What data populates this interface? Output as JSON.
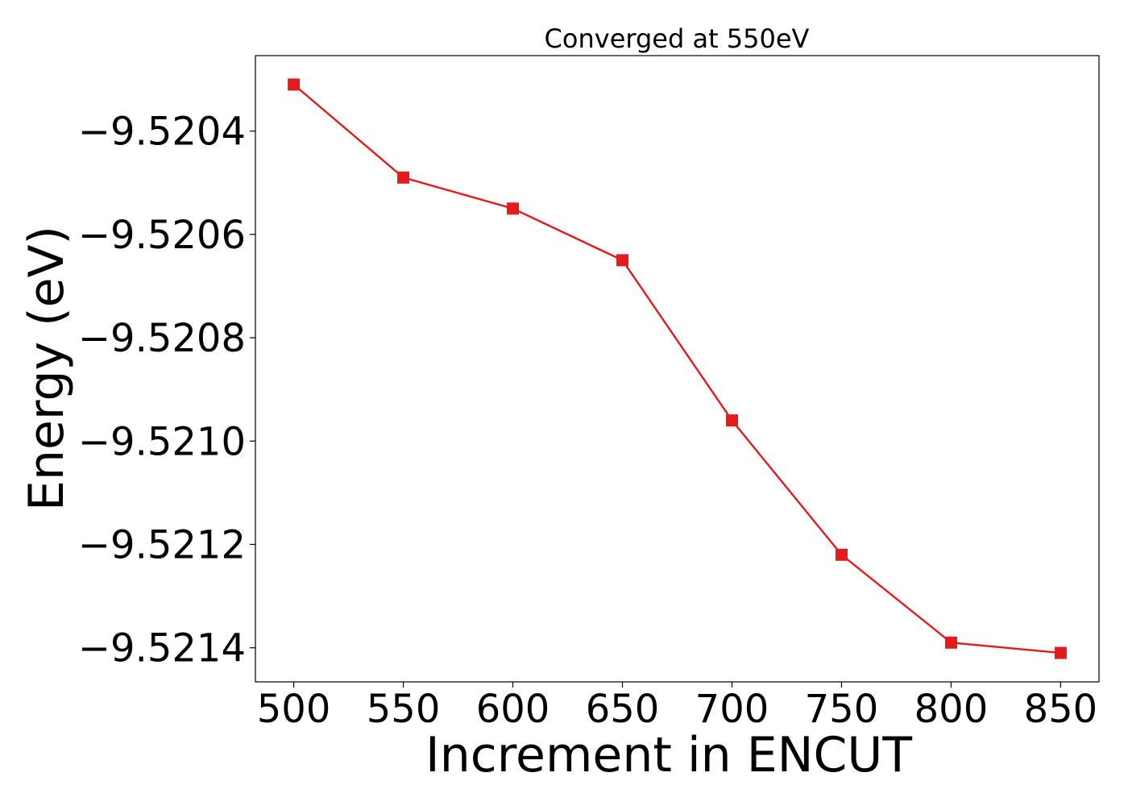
{
  "chart_data": {
    "type": "line",
    "title": "Converged at 550eV",
    "xlabel": "Increment in ENCUT",
    "ylabel": "Energy (eV)",
    "x": [
      500,
      550,
      600,
      650,
      700,
      750,
      800,
      850
    ],
    "series": [
      {
        "values": [
          -9.52031,
          -9.52049,
          -9.52055,
          -9.52065,
          -9.52096,
          -9.52122,
          -9.52139,
          -9.52141
        ],
        "color": "#e41a1c",
        "marker": "square"
      }
    ],
    "xticks": [
      500,
      550,
      600,
      650,
      700,
      750,
      800,
      850
    ],
    "xtick_labels": [
      "500",
      "550",
      "600",
      "650",
      "700",
      "750",
      "800",
      "850"
    ],
    "yticks": [
      -9.5204,
      -9.5206,
      -9.5208,
      -9.521,
      -9.5212,
      -9.5214
    ],
    "ytick_labels": [
      "−9.5204",
      "−9.5206",
      "−9.5208",
      "−9.5210",
      "−9.5212",
      "−9.5214"
    ],
    "xlim": [
      482.5,
      867.5
    ],
    "ylim": [
      -9.521466,
      -9.520254
    ],
    "grid": false,
    "legend": "none"
  }
}
